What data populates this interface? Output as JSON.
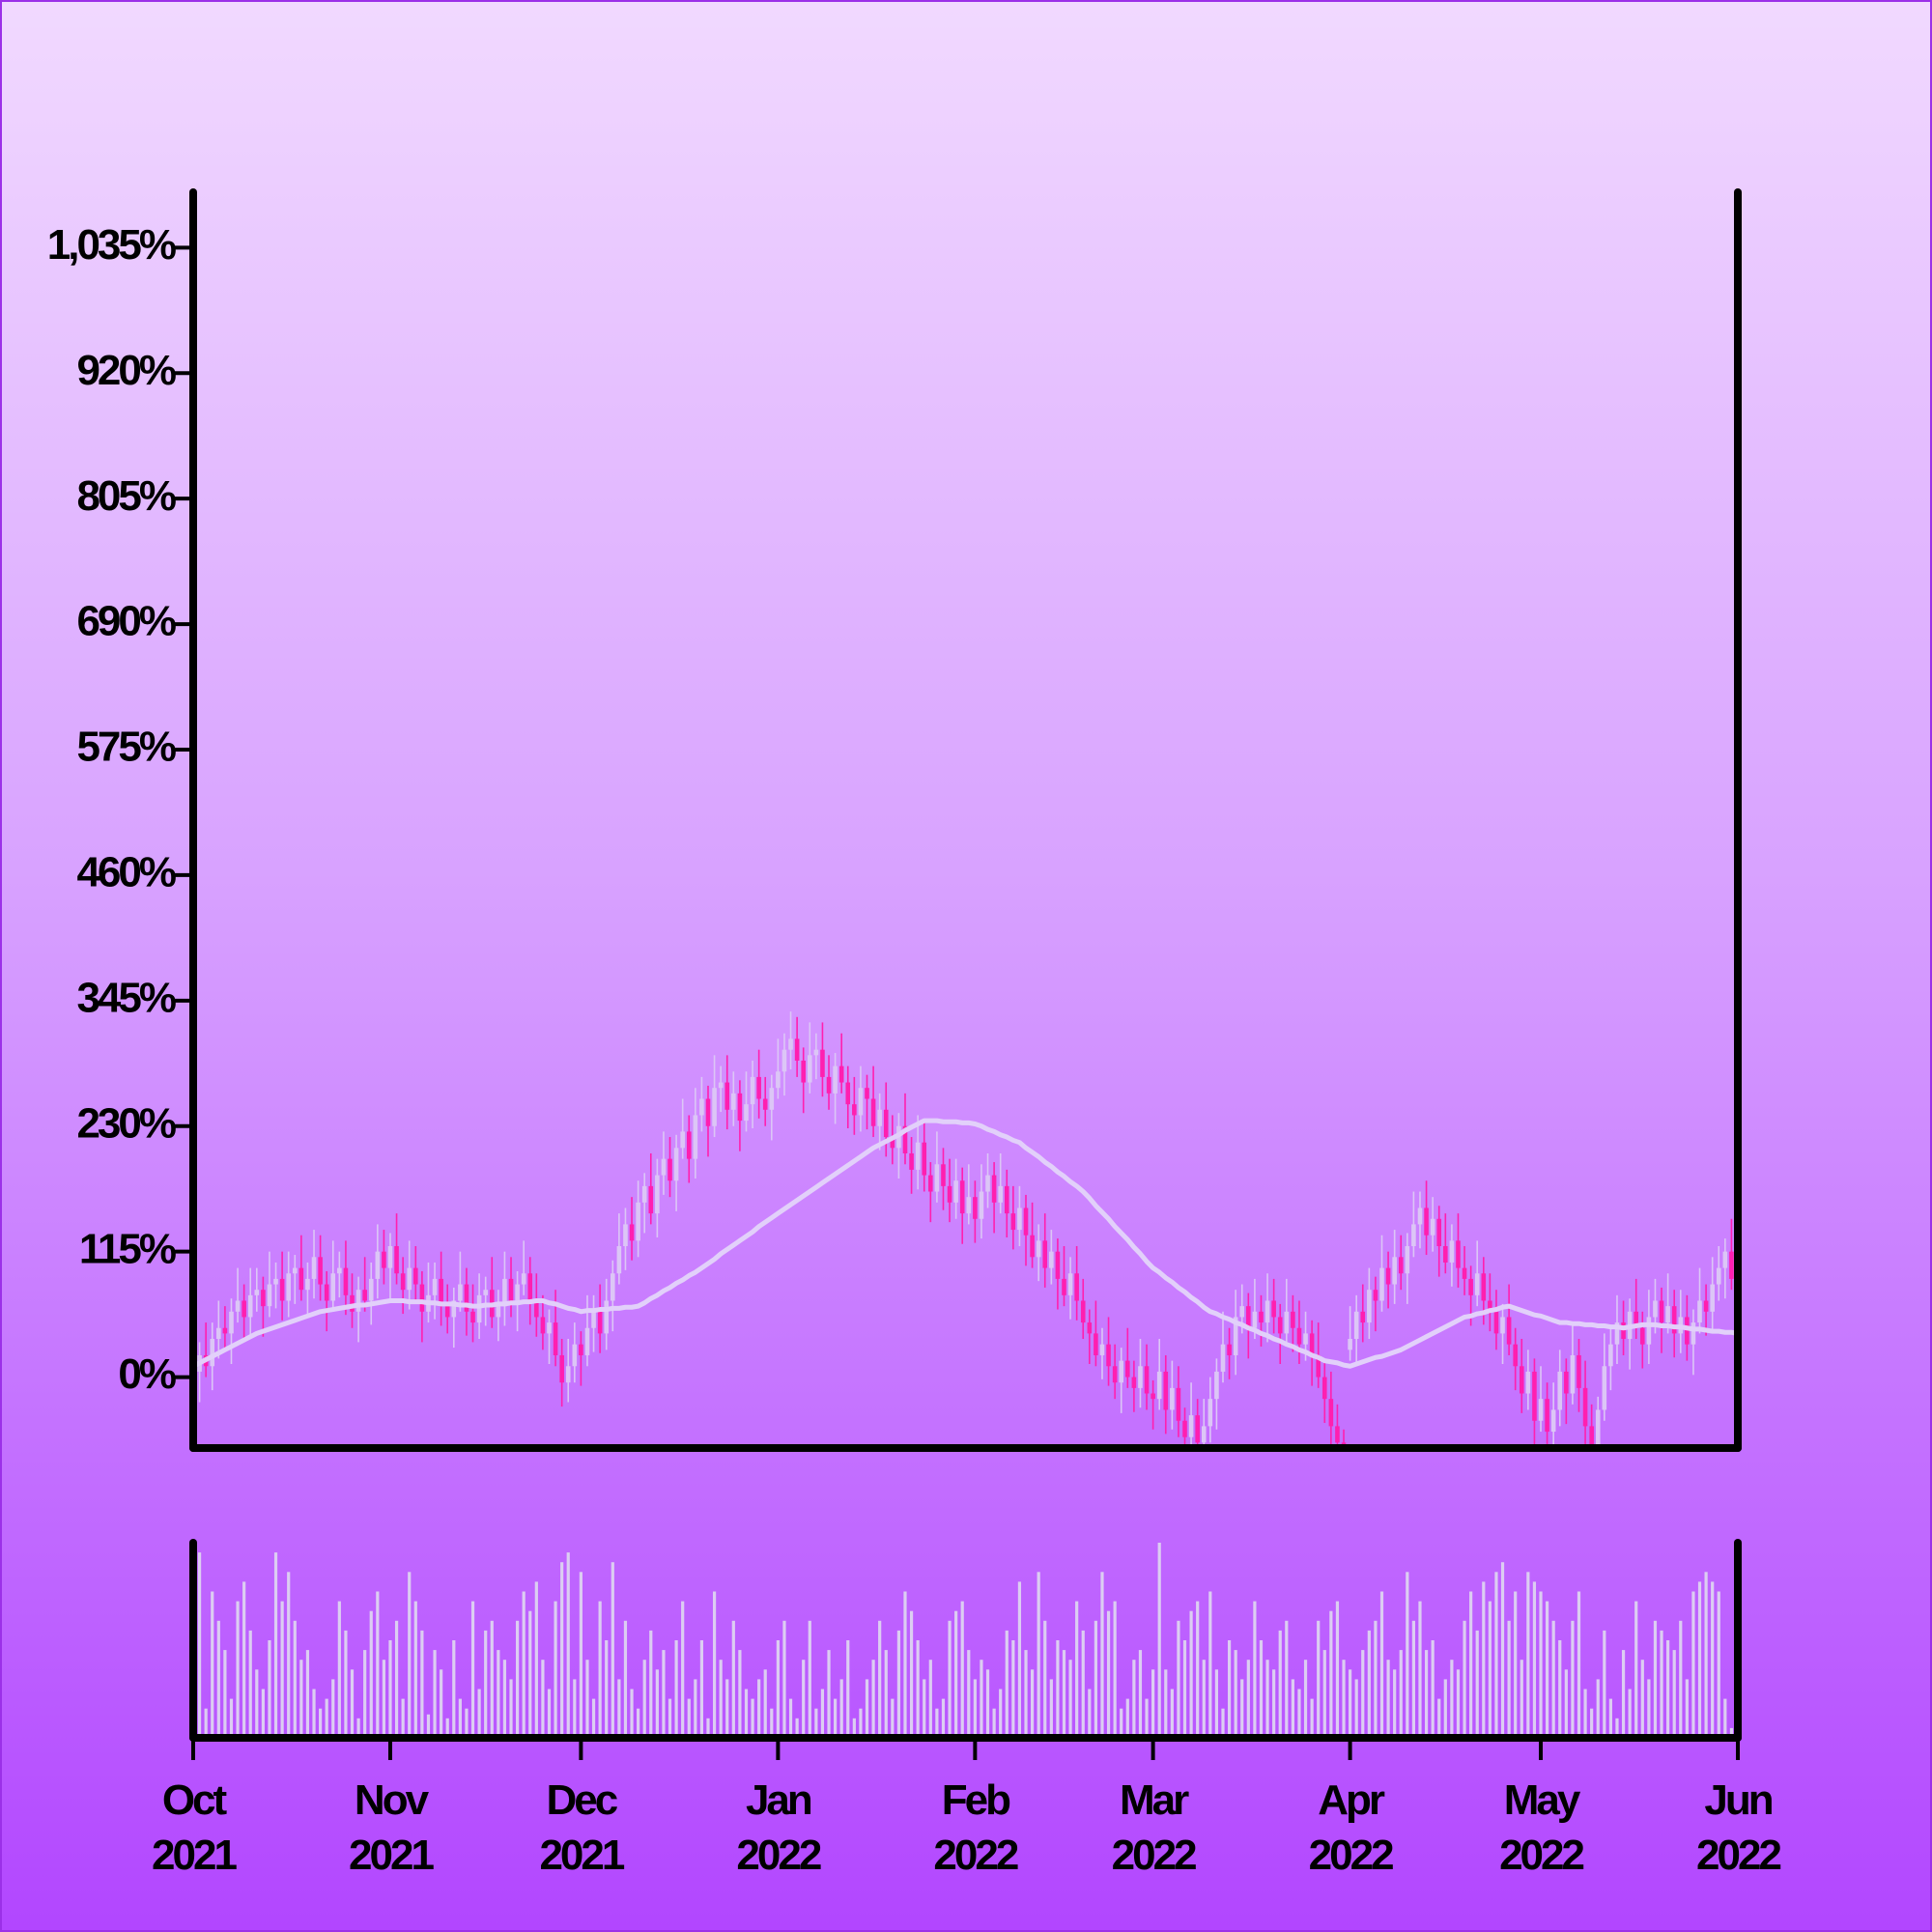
{
  "chart_data": {
    "type": "candlestick",
    "categories": [
      "Oct 2021",
      null,
      null,
      null,
      null,
      null,
      null,
      null,
      null,
      null,
      null,
      null,
      null,
      null,
      null,
      null,
      null,
      null,
      null,
      null,
      null,
      null,
      null,
      null,
      null,
      null,
      null,
      null,
      null,
      null,
      null,
      "Nov 2021",
      null,
      null,
      null,
      null,
      null,
      null,
      null,
      null,
      null,
      null,
      null,
      null,
      null,
      null,
      null,
      null,
      null,
      null,
      null,
      null,
      null,
      null,
      null,
      null,
      null,
      null,
      null,
      null,
      null,
      "Dec 2021",
      null,
      null,
      null,
      null,
      null,
      null,
      null,
      null,
      null,
      null,
      null,
      null,
      null,
      null,
      null,
      null,
      null,
      null,
      null,
      null,
      null,
      null,
      null,
      null,
      null,
      null,
      null,
      null,
      null,
      null,
      "Jan 2022",
      null,
      null,
      null,
      null,
      null,
      null,
      null,
      null,
      null,
      null,
      null,
      null,
      null,
      null,
      null,
      null,
      null,
      null,
      null,
      null,
      null,
      null,
      null,
      null,
      null,
      null,
      null,
      null,
      null,
      null,
      "Feb 2022",
      null,
      null,
      null,
      null,
      null,
      null,
      null,
      null,
      null,
      null,
      null,
      null,
      null,
      null,
      null,
      null,
      null,
      null,
      null,
      null,
      null,
      null,
      null,
      null,
      null,
      null,
      null,
      "Mar 2022",
      null,
      null,
      null,
      null,
      null,
      null,
      null,
      null,
      null,
      null,
      null,
      null,
      null,
      null,
      null,
      null,
      null,
      null,
      null,
      null,
      null,
      null,
      null,
      null,
      null,
      null,
      null,
      null,
      null,
      null,
      "Apr 2022",
      null,
      null,
      null,
      null,
      null,
      null,
      null,
      null,
      null,
      null,
      null,
      null,
      null,
      null,
      null,
      null,
      null,
      null,
      null,
      null,
      null,
      null,
      null,
      null,
      null,
      null,
      null,
      null,
      null,
      "May 2022",
      null,
      null,
      null,
      null,
      null,
      null,
      null,
      null,
      null,
      null,
      null,
      null,
      null,
      null,
      null,
      null,
      null,
      null,
      null,
      null,
      null,
      null,
      null,
      null,
      null,
      null,
      null,
      null,
      null,
      null,
      "Jun 2022"
    ],
    "open": [
      0,
      5,
      20,
      10,
      35,
      45,
      40,
      60,
      70,
      55,
      75,
      80,
      65,
      85,
      90,
      70,
      95,
      100,
      80,
      90,
      110,
      85,
      70,
      95,
      100,
      75,
      60,
      80,
      70,
      90,
      115,
      100,
      120,
      95,
      80,
      100,
      85,
      60,
      75,
      90,
      65,
      55,
      70,
      85,
      60,
      50,
      75,
      80,
      55,
      65,
      90,
      70,
      85,
      95,
      70,
      55,
      40,
      50,
      20,
      -5,
      10,
      30,
      20,
      45,
      60,
      40,
      70,
      95,
      120,
      140,
      125,
      160,
      175,
      150,
      185,
      200,
      180,
      210,
      225,
      200,
      240,
      255,
      230,
      265,
      270,
      245,
      260,
      235,
      250,
      275,
      255,
      245,
      265,
      280,
      300,
      310,
      290,
      270,
      295,
      300,
      275,
      260,
      285,
      270,
      250,
      240,
      265,
      255,
      230,
      245,
      220,
      210,
      230,
      205,
      190,
      215,
      185,
      170,
      195,
      175,
      160,
      180,
      150,
      165,
      145,
      170,
      185,
      160,
      175,
      150,
      135,
      155,
      130,
      110,
      125,
      100,
      115,
      90,
      75,
      95,
      70,
      50,
      40,
      20,
      30,
      10,
      -5,
      15,
      0,
      -10,
      10,
      -15,
      -20,
      5,
      -30,
      -10,
      -40,
      -55,
      -35,
      -60,
      -45,
      -20,
      5,
      30,
      20,
      55,
      65,
      45,
      60,
      50,
      70,
      55,
      40,
      60,
      45,
      30,
      40,
      20,
      0,
      -20,
      -45,
      -60,
      25,
      35,
      60,
      50,
      80,
      70,
      100,
      85,
      110,
      95,
      120,
      140,
      155,
      130,
      145,
      120,
      105,
      125,
      100,
      90,
      75,
      95,
      70,
      60,
      40,
      55,
      30,
      10,
      -15,
      5,
      -40,
      -20,
      -50,
      -30,
      5,
      -15,
      20,
      -10,
      -45,
      -65,
      -30,
      10,
      30,
      50,
      35,
      60,
      45,
      30,
      55,
      70,
      50,
      65,
      40,
      55,
      30,
      50,
      70,
      60,
      85,
      100,
      115,
      90
    ],
    "high": [
      25,
      32,
      50,
      50,
      70,
      65,
      72,
      100,
      85,
      100,
      100,
      92,
      115,
      105,
      115,
      115,
      112,
      130,
      105,
      135,
      130,
      97,
      125,
      115,
      125,
      95,
      92,
      110,
      105,
      140,
      135,
      132,
      150,
      110,
      125,
      120,
      97,
      105,
      105,
      115,
      85,
      82,
      115,
      100,
      85,
      95,
      92,
      110,
      80,
      115,
      110,
      97,
      125,
      110,
      95,
      75,
      62,
      80,
      35,
      35,
      50,
      42,
      75,
      75,
      85,
      90,
      107,
      150,
      155,
      165,
      180,
      187,
      205,
      200,
      225,
      220,
      222,
      255,
      240,
      265,
      275,
      267,
      295,
      285,
      295,
      280,
      272,
      280,
      290,
      300,
      275,
      277,
      310,
      315,
      335,
      330,
      302,
      325,
      315,
      325,
      295,
      297,
      315,
      285,
      275,
      285,
      277,
      285,
      260,
      270,
      240,
      242,
      260,
      220,
      240,
      235,
      197,
      225,
      210,
      200,
      200,
      192,
      195,
      180,
      195,
      205,
      197,
      205,
      190,
      175,
      175,
      167,
      160,
      140,
      150,
      135,
      127,
      120,
      110,
      120,
      90,
      62,
      70,
      45,
      55,
      30,
      27,
      45,
      15,
      35,
      30,
      -3,
      35,
      20,
      15,
      10,
      -28,
      -5,
      -20,
      -20,
      0,
      17,
      60,
      45,
      80,
      85,
      77,
      90,
      75,
      95,
      90,
      67,
      90,
      75,
      70,
      60,
      52,
      50,
      15,
      5,
      -25,
      -48,
      65,
      75,
      85,
      100,
      92,
      130,
      115,
      135,
      130,
      132,
      170,
      170,
      180,
      165,
      157,
      150,
      140,
      150,
      120,
      102,
      125,
      110,
      95,
      80,
      67,
      85,
      45,
      35,
      25,
      17,
      10,
      -5,
      -5,
      25,
      17,
      50,
      35,
      15,
      -25,
      -18,
      40,
      45,
      75,
      70,
      72,
      90,
      60,
      80,
      90,
      82,
      95,
      80,
      80,
      75,
      62,
      100,
      85,
      110,
      120,
      127,
      145,
      105
    ],
    "low": [
      -15,
      -23,
      0,
      -12,
      17,
      25,
      12,
      50,
      33,
      37,
      60,
      37,
      55,
      63,
      52,
      55,
      67,
      70,
      58,
      72,
      70,
      42,
      60,
      73,
      57,
      45,
      32,
      60,
      48,
      72,
      85,
      72,
      85,
      58,
      62,
      70,
      32,
      50,
      53,
      47,
      40,
      27,
      60,
      38,
      32,
      35,
      47,
      45,
      33,
      47,
      55,
      42,
      75,
      48,
      37,
      25,
      12,
      10,
      -27,
      -23,
      -5,
      -8,
      10,
      23,
      22,
      25,
      42,
      85,
      98,
      107,
      110,
      132,
      140,
      128,
      167,
      165,
      152,
      200,
      178,
      182,
      225,
      202,
      220,
      243,
      227,
      230,
      207,
      225,
      228,
      237,
      230,
      217,
      255,
      258,
      282,
      275,
      242,
      260,
      273,
      257,
      245,
      232,
      260,
      228,
      222,
      225,
      227,
      220,
      208,
      202,
      195,
      182,
      195,
      168,
      172,
      170,
      142,
      160,
      153,
      142,
      145,
      122,
      140,
      123,
      127,
      155,
      132,
      150,
      128,
      117,
      120,
      102,
      100,
      88,
      82,
      85,
      62,
      65,
      53,
      52,
      35,
      12,
      10,
      -2,
      -8,
      -20,
      -33,
      -10,
      -32,
      -28,
      -30,
      -48,
      -30,
      -52,
      -48,
      -55,
      -83,
      -65,
      -82,
      -78,
      -60,
      -48,
      -5,
      -2,
      2,
      40,
      17,
      35,
      28,
      32,
      40,
      12,
      30,
      23,
      12,
      15,
      -8,
      -10,
      -42,
      -63,
      -75,
      -98,
      15,
      13,
      32,
      35,
      42,
      60,
      63,
      67,
      80,
      67,
      110,
      118,
      112,
      115,
      92,
      95,
      83,
      82,
      75,
      47,
      65,
      48,
      42,
      25,
      12,
      20,
      -12,
      -33,
      -30,
      -68,
      -50,
      -72,
      -68,
      -45,
      -43,
      -25,
      -32,
      -63,
      -80,
      -93,
      -40,
      -12,
      12,
      20,
      7,
      35,
      8,
      12,
      40,
      22,
      40,
      18,
      22,
      15,
      2,
      40,
      38,
      42,
      70,
      72,
      80,
      48
    ],
    "close": [
      5,
      20,
      10,
      35,
      45,
      40,
      60,
      70,
      55,
      75,
      80,
      65,
      85,
      90,
      70,
      95,
      100,
      80,
      90,
      110,
      85,
      70,
      95,
      100,
      75,
      60,
      80,
      70,
      90,
      115,
      100,
      120,
      95,
      80,
      100,
      85,
      60,
      75,
      90,
      65,
      55,
      70,
      85,
      60,
      50,
      75,
      80,
      55,
      65,
      90,
      70,
      85,
      95,
      70,
      55,
      40,
      50,
      20,
      -5,
      10,
      30,
      20,
      45,
      60,
      40,
      70,
      95,
      120,
      140,
      125,
      160,
      175,
      150,
      185,
      200,
      180,
      210,
      225,
      200,
      240,
      255,
      230,
      265,
      270,
      245,
      260,
      235,
      250,
      275,
      255,
      245,
      265,
      280,
      300,
      310,
      290,
      270,
      295,
      300,
      275,
      260,
      285,
      270,
      250,
      240,
      265,
      255,
      230,
      245,
      220,
      210,
      230,
      205,
      190,
      215,
      185,
      170,
      195,
      175,
      160,
      180,
      150,
      165,
      145,
      170,
      185,
      160,
      175,
      150,
      135,
      155,
      130,
      110,
      125,
      100,
      115,
      90,
      75,
      95,
      70,
      50,
      40,
      20,
      30,
      10,
      -5,
      15,
      0,
      -10,
      10,
      -15,
      -20,
      5,
      -30,
      -10,
      -40,
      -55,
      -35,
      -60,
      -45,
      -20,
      5,
      30,
      20,
      55,
      65,
      45,
      60,
      50,
      70,
      55,
      40,
      60,
      45,
      30,
      40,
      20,
      0,
      -20,
      -45,
      -60,
      -70,
      35,
      60,
      50,
      80,
      70,
      100,
      85,
      110,
      95,
      120,
      140,
      155,
      130,
      145,
      120,
      105,
      125,
      100,
      90,
      75,
      95,
      70,
      60,
      40,
      55,
      30,
      10,
      -15,
      5,
      -40,
      -20,
      -50,
      -30,
      5,
      -15,
      20,
      -10,
      -45,
      -65,
      -30,
      10,
      30,
      50,
      35,
      60,
      45,
      30,
      55,
      70,
      50,
      65,
      40,
      55,
      30,
      50,
      70,
      60,
      85,
      100,
      115,
      90,
      70
    ],
    "moving_average": [
      10,
      13,
      16,
      19,
      22,
      25,
      28,
      31,
      34,
      37,
      40,
      42,
      44,
      46,
      48,
      50,
      52,
      54,
      56,
      58,
      60,
      61,
      62,
      63,
      64,
      65,
      66,
      66,
      67,
      68,
      69,
      70,
      70,
      70,
      69,
      69,
      69,
      68,
      68,
      67,
      67,
      67,
      66,
      66,
      65,
      65,
      66,
      66,
      67,
      67,
      68,
      68,
      69,
      69,
      70,
      70,
      68,
      67,
      65,
      63,
      62,
      60,
      61,
      61,
      62,
      62,
      63,
      63,
      64,
      64,
      65,
      68,
      72,
      75,
      79,
      82,
      86,
      89,
      93,
      96,
      100,
      104,
      108,
      113,
      117,
      121,
      125,
      129,
      133,
      138,
      142,
      146,
      150,
      154,
      158,
      162,
      166,
      170,
      174,
      178,
      182,
      186,
      190,
      194,
      198,
      202,
      206,
      210,
      213,
      216,
      219,
      222,
      226,
      229,
      232,
      235,
      235,
      235,
      234,
      234,
      234,
      233,
      233,
      232,
      230,
      227,
      225,
      222,
      220,
      217,
      215,
      210,
      206,
      202,
      197,
      193,
      188,
      184,
      179,
      175,
      170,
      164,
      157,
      151,
      145,
      138,
      132,
      126,
      119,
      113,
      106,
      100,
      96,
      91,
      87,
      82,
      78,
      73,
      69,
      64,
      60,
      58,
      55,
      53,
      50,
      48,
      45,
      43,
      40,
      38,
      35,
      33,
      30,
      28,
      25,
      23,
      20,
      18,
      15,
      14,
      13,
      11,
      10,
      12,
      14,
      16,
      18,
      19,
      21,
      23,
      25,
      28,
      31,
      34,
      37,
      40,
      43,
      46,
      49,
      52,
      55,
      56,
      58,
      59,
      61,
      62,
      64,
      65,
      63,
      61,
      59,
      57,
      56,
      54,
      52,
      50,
      50,
      49,
      49,
      48,
      48,
      47,
      47,
      46,
      46,
      45,
      46,
      47,
      48,
      48,
      48,
      47,
      47,
      46,
      46,
      45,
      44,
      44,
      43,
      42,
      42,
      41,
      41,
      40
    ],
    "volume": [
      30,
      95,
      15,
      75,
      60,
      45,
      20,
      70,
      80,
      55,
      35,
      25,
      50,
      95,
      70,
      85,
      60,
      40,
      45,
      25,
      15,
      20,
      30,
      70,
      55,
      35,
      10,
      45,
      65,
      75,
      40,
      50,
      60,
      20,
      85,
      70,
      55,
      12,
      45,
      35,
      10,
      50,
      20,
      15,
      70,
      25,
      55,
      60,
      45,
      40,
      30,
      60,
      75,
      65,
      80,
      40,
      25,
      70,
      90,
      95,
      30,
      85,
      40,
      20,
      70,
      50,
      90,
      30,
      60,
      25,
      15,
      40,
      55,
      35,
      45,
      20,
      50,
      70,
      20,
      30,
      50,
      10,
      75,
      40,
      30,
      60,
      45,
      25,
      20,
      30,
      35,
      15,
      50,
      60,
      20,
      10,
      40,
      60,
      15,
      25,
      45,
      20,
      30,
      50,
      10,
      15,
      30,
      40,
      60,
      45,
      20,
      55,
      75,
      65,
      50,
      30,
      40,
      15,
      20,
      60,
      65,
      70,
      45,
      30,
      40,
      35,
      15,
      25,
      55,
      50,
      80,
      45,
      35,
      85,
      60,
      30,
      50,
      45,
      40,
      70,
      55,
      25,
      60,
      85,
      65,
      70,
      15,
      20,
      40,
      45,
      20,
      35,
      100,
      35,
      25,
      60,
      50,
      65,
      70,
      40,
      75,
      35,
      15,
      50,
      45,
      30,
      40,
      70,
      50,
      40,
      35,
      55,
      60,
      30,
      25,
      40,
      20,
      60,
      45,
      65,
      70,
      40,
      35,
      30,
      45,
      55,
      60,
      75,
      40,
      35,
      45,
      85,
      60,
      70,
      45,
      50,
      20,
      30,
      40,
      35,
      60,
      75,
      55,
      80,
      70,
      85,
      90,
      60,
      75,
      40,
      85,
      80,
      75,
      70,
      60,
      50,
      35,
      60,
      75,
      25,
      15,
      30,
      55,
      20,
      10,
      45,
      25,
      70,
      40,
      30,
      60,
      55,
      50,
      45,
      60,
      30,
      75,
      80,
      85,
      80,
      75,
      20,
      5,
      40
    ],
    "up_color": "#dcc6f6",
    "down_color": "#ff1fb0",
    "ma_color": "#e2d0fa",
    "volume_color": "#dccdf2",
    "ylim": [
      -65,
      1084
    ],
    "yticks": [
      {
        "value": 0,
        "label": "0%"
      },
      {
        "value": 115,
        "label": "115%"
      },
      {
        "value": 230,
        "label": "230%"
      },
      {
        "value": 345,
        "label": "345%"
      },
      {
        "value": 460,
        "label": "460%"
      },
      {
        "value": 575,
        "label": "575%"
      },
      {
        "value": 690,
        "label": "690%"
      },
      {
        "value": 805,
        "label": "805%"
      },
      {
        "value": 920,
        "label": "920%"
      },
      {
        "value": 1035,
        "label": "1,035%"
      }
    ],
    "volume_lim": [
      0,
      100
    ]
  }
}
